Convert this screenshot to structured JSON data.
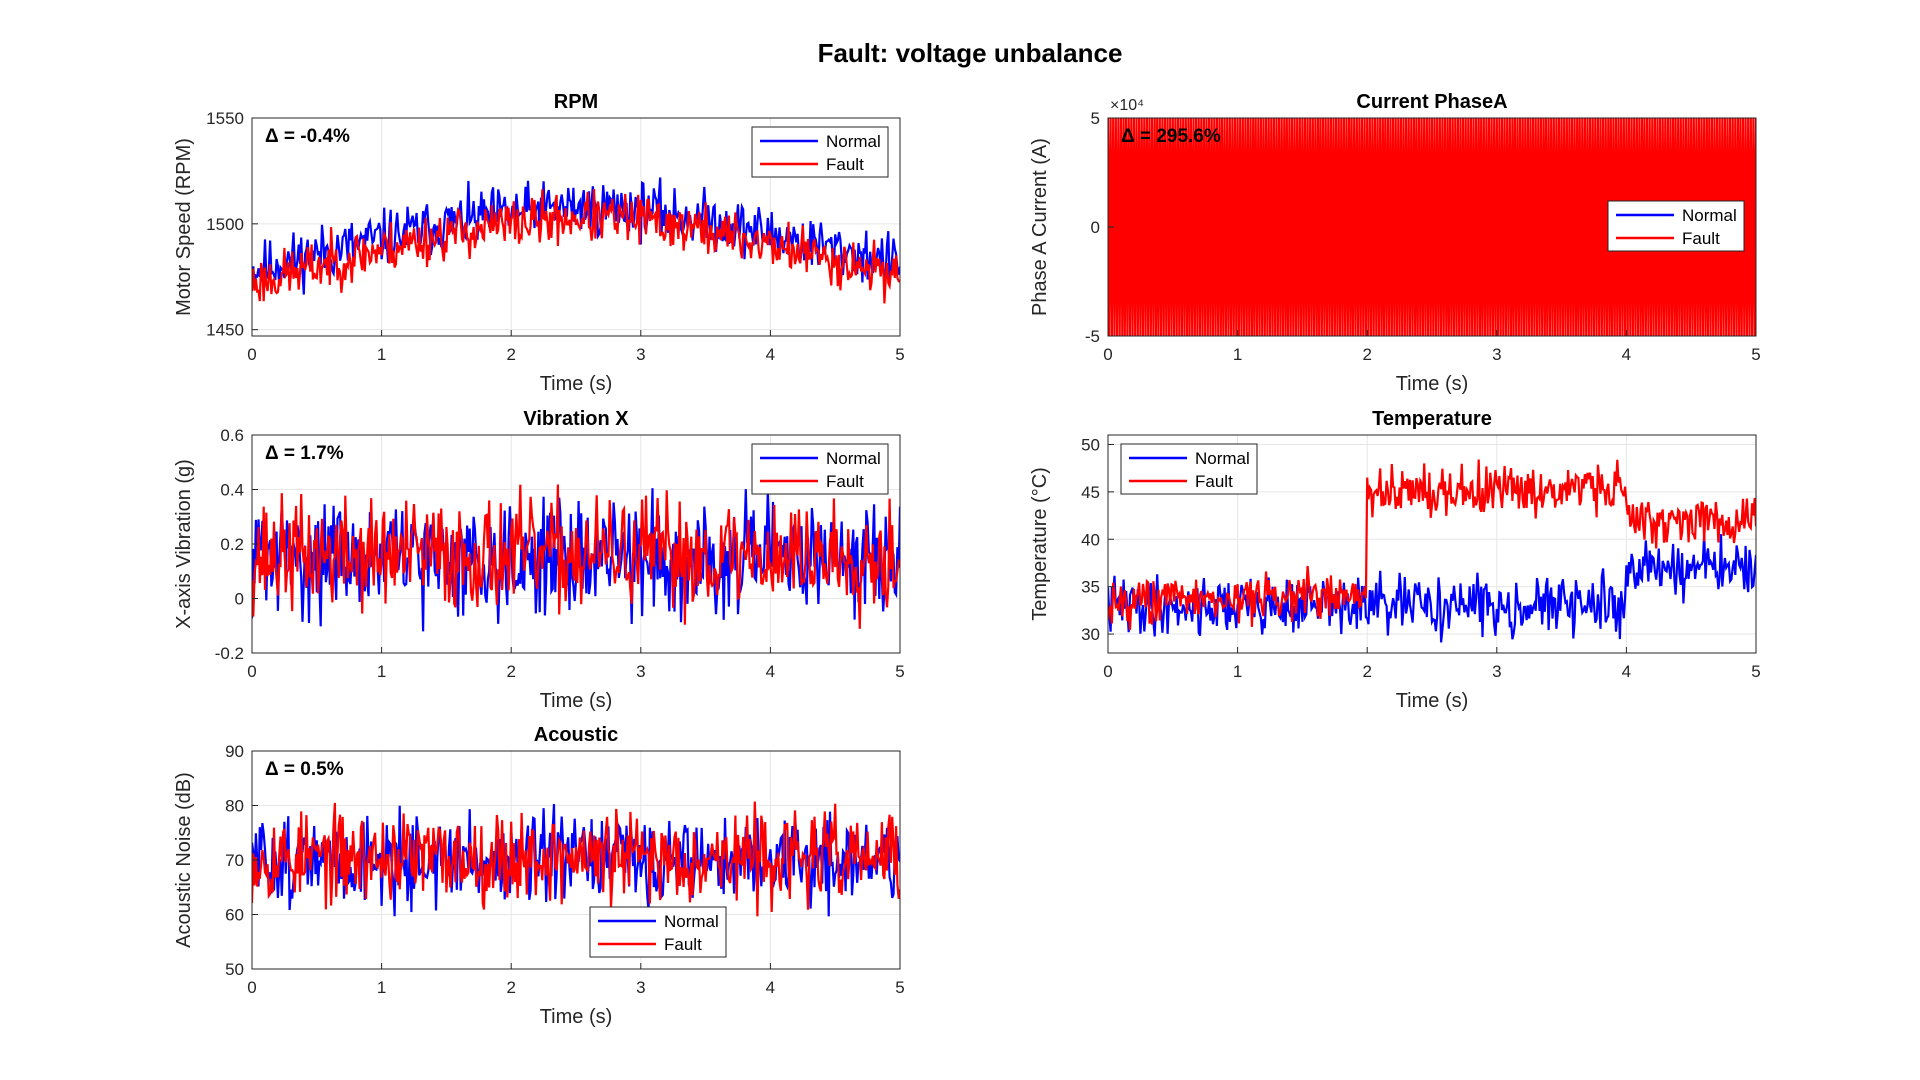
{
  "figure_title": "Fault: voltage unbalance",
  "colors": {
    "normal": "#0000ff",
    "fault": "#ff0000",
    "axis": "#262626",
    "grid": "#e6e6e6"
  },
  "chart_data": [
    {
      "type": "line",
      "title": "RPM",
      "xlabel": "Time (s)",
      "ylabel": "Motor Speed (RPM)",
      "xlim": [
        0,
        5
      ],
      "ylim": [
        1447,
        1550
      ],
      "xticks": [
        0,
        1,
        2,
        3,
        4,
        5
      ],
      "yticks": [
        1450,
        1500,
        1550
      ],
      "ytick_labels": [
        "1450",
        "1500",
        "1550"
      ],
      "exponent_label": "",
      "annotation": "Δ = -0.4%",
      "legend": {
        "placement": "top-right",
        "entries": [
          "Normal",
          "Fault"
        ]
      },
      "series": [
        {
          "name": "Normal",
          "color": "#0000ff",
          "x": [
            0,
            0.5,
            1,
            1.5,
            2,
            2.5,
            3,
            3.5,
            4,
            4.5,
            5
          ],
          "y": [
            1478,
            1486,
            1493,
            1500,
            1505,
            1508,
            1507,
            1502,
            1495,
            1488,
            1481
          ],
          "noise": 13,
          "seed": 11
        },
        {
          "name": "Fault",
          "color": "#ff0000",
          "x": [
            0,
            0.5,
            1,
            1.5,
            2,
            2.5,
            3,
            3.5,
            4,
            4.5,
            5
          ],
          "y": [
            1472,
            1480,
            1488,
            1495,
            1500,
            1503,
            1502,
            1497,
            1490,
            1483,
            1476
          ],
          "noise": 12,
          "seed": 23
        }
      ]
    },
    {
      "type": "line",
      "title": "Current PhaseA",
      "xlabel": "Time (s)",
      "ylabel": "Phase A Current (A)",
      "xlim": [
        0,
        5
      ],
      "ylim": [
        -50000,
        50000
      ],
      "xticks": [
        0,
        1,
        2,
        3,
        4,
        5
      ],
      "yticks": [
        -50000,
        0,
        50000
      ],
      "ytick_labels": [
        "-5",
        "0",
        "5"
      ],
      "exponent_label": "×10⁴",
      "annotation": "Δ = 295.6%",
      "legend": {
        "placement": "right",
        "entries": [
          "Normal",
          "Fault"
        ]
      },
      "series": [
        {
          "name": "Normal",
          "color": "#0000ff",
          "x": [
            0,
            5
          ],
          "y": [
            0,
            0
          ],
          "amplitude": 12000,
          "style": "oscillation",
          "seed": 5
        },
        {
          "name": "Fault",
          "color": "#ff0000",
          "x": [
            0,
            5
          ],
          "y": [
            0,
            0
          ],
          "amplitude": 50000,
          "style": "oscillation",
          "seed": 7
        }
      ]
    },
    {
      "type": "line",
      "title": "Vibration X",
      "xlabel": "Time (s)",
      "ylabel": "X-axis Vibration (g)",
      "xlim": [
        0,
        5
      ],
      "ylim": [
        -0.2,
        0.6
      ],
      "xticks": [
        0,
        1,
        2,
        3,
        4,
        5
      ],
      "yticks": [
        -0.2,
        0,
        0.2,
        0.4,
        0.6
      ],
      "ytick_labels": [
        "-0.2",
        "0",
        "0.2",
        "0.4",
        "0.6"
      ],
      "exponent_label": "",
      "annotation": "Δ = 1.7%",
      "legend": {
        "placement": "top-right",
        "entries": [
          "Normal",
          "Fault"
        ]
      },
      "series": [
        {
          "name": "Normal",
          "color": "#0000ff",
          "x": [
            0,
            5
          ],
          "y": [
            0.15,
            0.15
          ],
          "noise": 0.2,
          "seed": 31
        },
        {
          "name": "Fault",
          "color": "#ff0000",
          "x": [
            0,
            5
          ],
          "y": [
            0.16,
            0.16
          ],
          "noise": 0.2,
          "seed": 37
        }
      ]
    },
    {
      "type": "line",
      "title": "Temperature",
      "xlabel": "Time (s)",
      "ylabel": "Temperature (°C)",
      "xlim": [
        0,
        5
      ],
      "ylim": [
        28,
        51
      ],
      "xticks": [
        0,
        1,
        2,
        3,
        4,
        5
      ],
      "yticks": [
        30,
        35,
        40,
        45,
        50
      ],
      "ytick_labels": [
        "30",
        "35",
        "40",
        "45",
        "50"
      ],
      "exponent_label": "",
      "annotation": "",
      "legend": {
        "placement": "top-left",
        "entries": [
          "Normal",
          "Fault"
        ]
      },
      "series": [
        {
          "name": "Normal",
          "color": "#0000ff",
          "x": [
            0,
            1.99,
            2.0,
            3.99,
            4.0,
            5
          ],
          "y": [
            33,
            33,
            33,
            33,
            37,
            37
          ],
          "noise": 3,
          "seed": 41
        },
        {
          "name": "Fault",
          "color": "#ff0000",
          "x": [
            0,
            1.99,
            2.0,
            3.99,
            4.0,
            5
          ],
          "y": [
            33.5,
            34,
            45,
            45.5,
            42,
            42
          ],
          "noise": 2.5,
          "seed": 43
        }
      ]
    },
    {
      "type": "line",
      "title": "Acoustic",
      "xlabel": "Time (s)",
      "ylabel": "Acoustic Noise (dB)",
      "xlim": [
        0,
        5
      ],
      "ylim": [
        50,
        90
      ],
      "xticks": [
        0,
        1,
        2,
        3,
        4,
        5
      ],
      "yticks": [
        50,
        60,
        70,
        80,
        90
      ],
      "ytick_labels": [
        "50",
        "60",
        "70",
        "80",
        "90"
      ],
      "exponent_label": "",
      "annotation": "Δ = 0.5%",
      "legend": {
        "placement": "bottom-right",
        "entries": [
          "Normal",
          "Fault"
        ]
      },
      "series": [
        {
          "name": "Normal",
          "color": "#0000ff",
          "x": [
            0,
            5
          ],
          "y": [
            70,
            70
          ],
          "noise": 8,
          "seed": 51
        },
        {
          "name": "Fault",
          "color": "#ff0000",
          "x": [
            0,
            5
          ],
          "y": [
            70.5,
            70.5
          ],
          "noise": 8,
          "seed": 53
        }
      ]
    }
  ]
}
